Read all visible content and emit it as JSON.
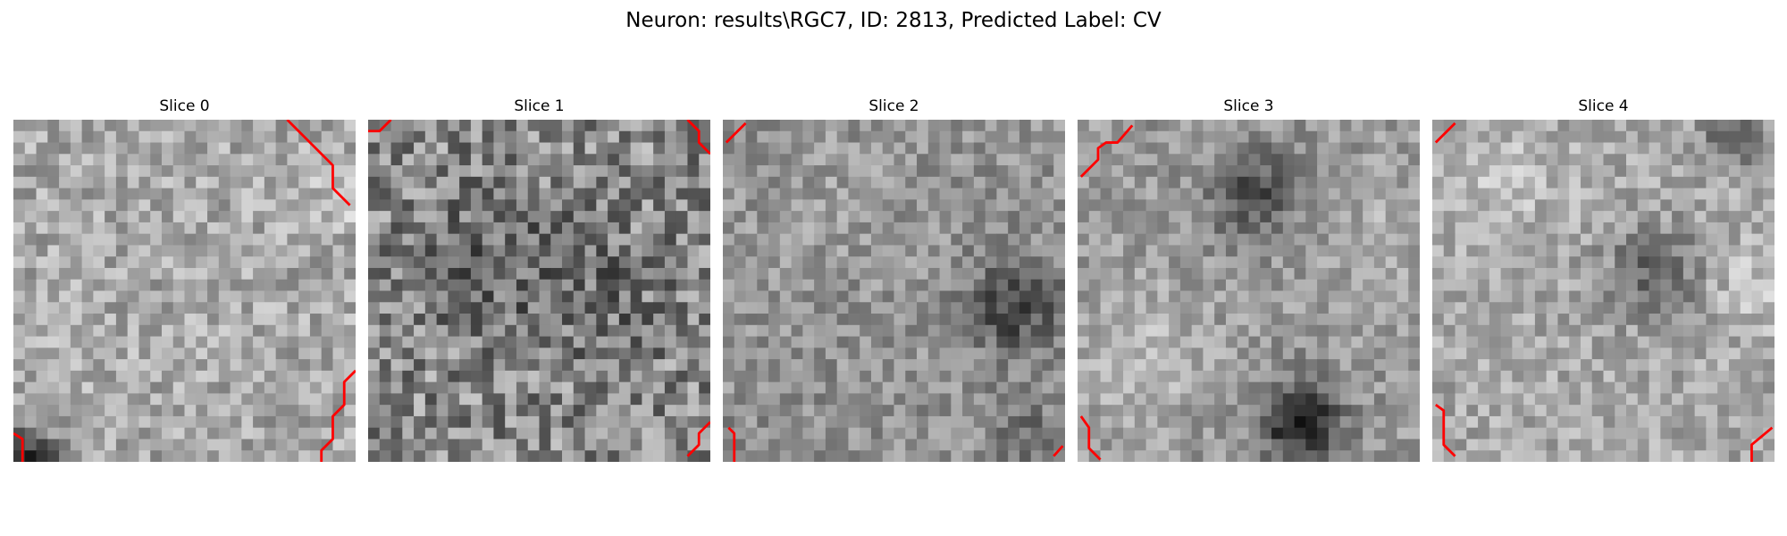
{
  "figure": {
    "title": "Neuron: results\\RGC7, ID: 2813, Predicted Label: CV"
  },
  "panels": [
    {
      "title": "Slice 0"
    },
    {
      "title": "Slice 1"
    },
    {
      "title": "Slice 2"
    },
    {
      "title": "Slice 3"
    },
    {
      "title": "Slice 4"
    }
  ],
  "colors": {
    "contour": "#ff0000",
    "background": "#ffffff"
  }
}
